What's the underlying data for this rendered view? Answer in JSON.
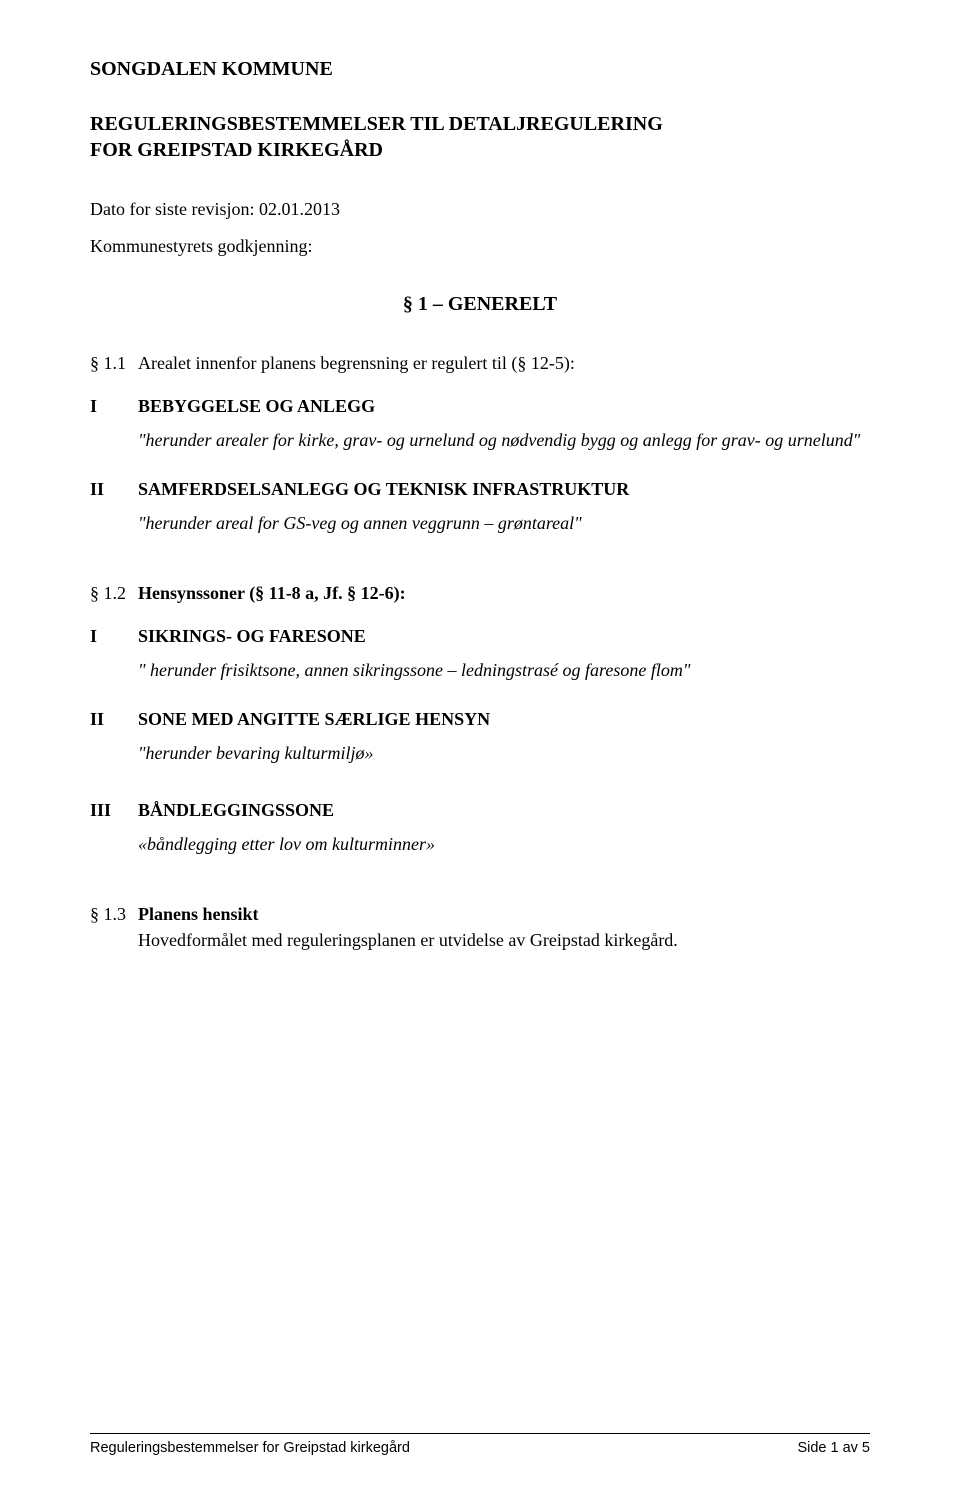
{
  "header": {
    "kommune": "SONGDALEN KOMMUNE",
    "subtitle_line1": "REGULERINGSBESTEMMELSER TIL DETALJREGULERING",
    "subtitle_line2": "FOR GREIPSTAD KIRKEGÅRD",
    "date_line": "Dato for siste revisjon: 02.01.2013",
    "approval_line": "Kommunestyrets godkjenning:"
  },
  "section1": {
    "heading": "§ 1 – GENERELT",
    "clause_1_1": {
      "num": "§ 1.1",
      "text": "Arealet innenfor planens begrensning er regulert til (§ 12-5):"
    },
    "I": {
      "roman": "I",
      "label": "BEBYGGELSE OG ANLEGG",
      "sub": "\"herunder arealer for kirke, grav- og urnelund og  nødvendig bygg og anlegg for grav- og urnelund\""
    },
    "II": {
      "roman": "II",
      "label": "SAMFERDSELSANLEGG OG TEKNISK INFRASTRUKTUR",
      "sub": "\"herunder areal for GS-veg og annen veggrunn – grøntareal\""
    },
    "clause_1_2": {
      "num": "§ 1.2",
      "text": "Hensynssoner (§ 11-8 a, Jf. § 12-6):"
    },
    "I2": {
      "roman": "I",
      "label": "SIKRINGS- OG FARESONE",
      "sub": "\" herunder frisiktsone,  annen sikringssone – ledningstrasé og faresone flom\""
    },
    "II2": {
      "roman": "II",
      "label": "SONE MED ANGITTE SÆRLIGE HENSYN",
      "sub": "\"herunder bevaring kulturmiljø»"
    },
    "III": {
      "roman": "III",
      "label": "BÅNDLEGGINGSSONE",
      "sub": "«båndlegging etter lov om kulturminner»"
    },
    "clause_1_3": {
      "num": "§ 1.3",
      "title": "Planens hensikt",
      "text": "Hovedformålet med reguleringsplanen er utvidelse av Greipstad  kirkegård."
    }
  },
  "footer": {
    "left": "Reguleringsbestemmelser for Greipstad kirkegård",
    "right": "Side 1 av 5"
  }
}
